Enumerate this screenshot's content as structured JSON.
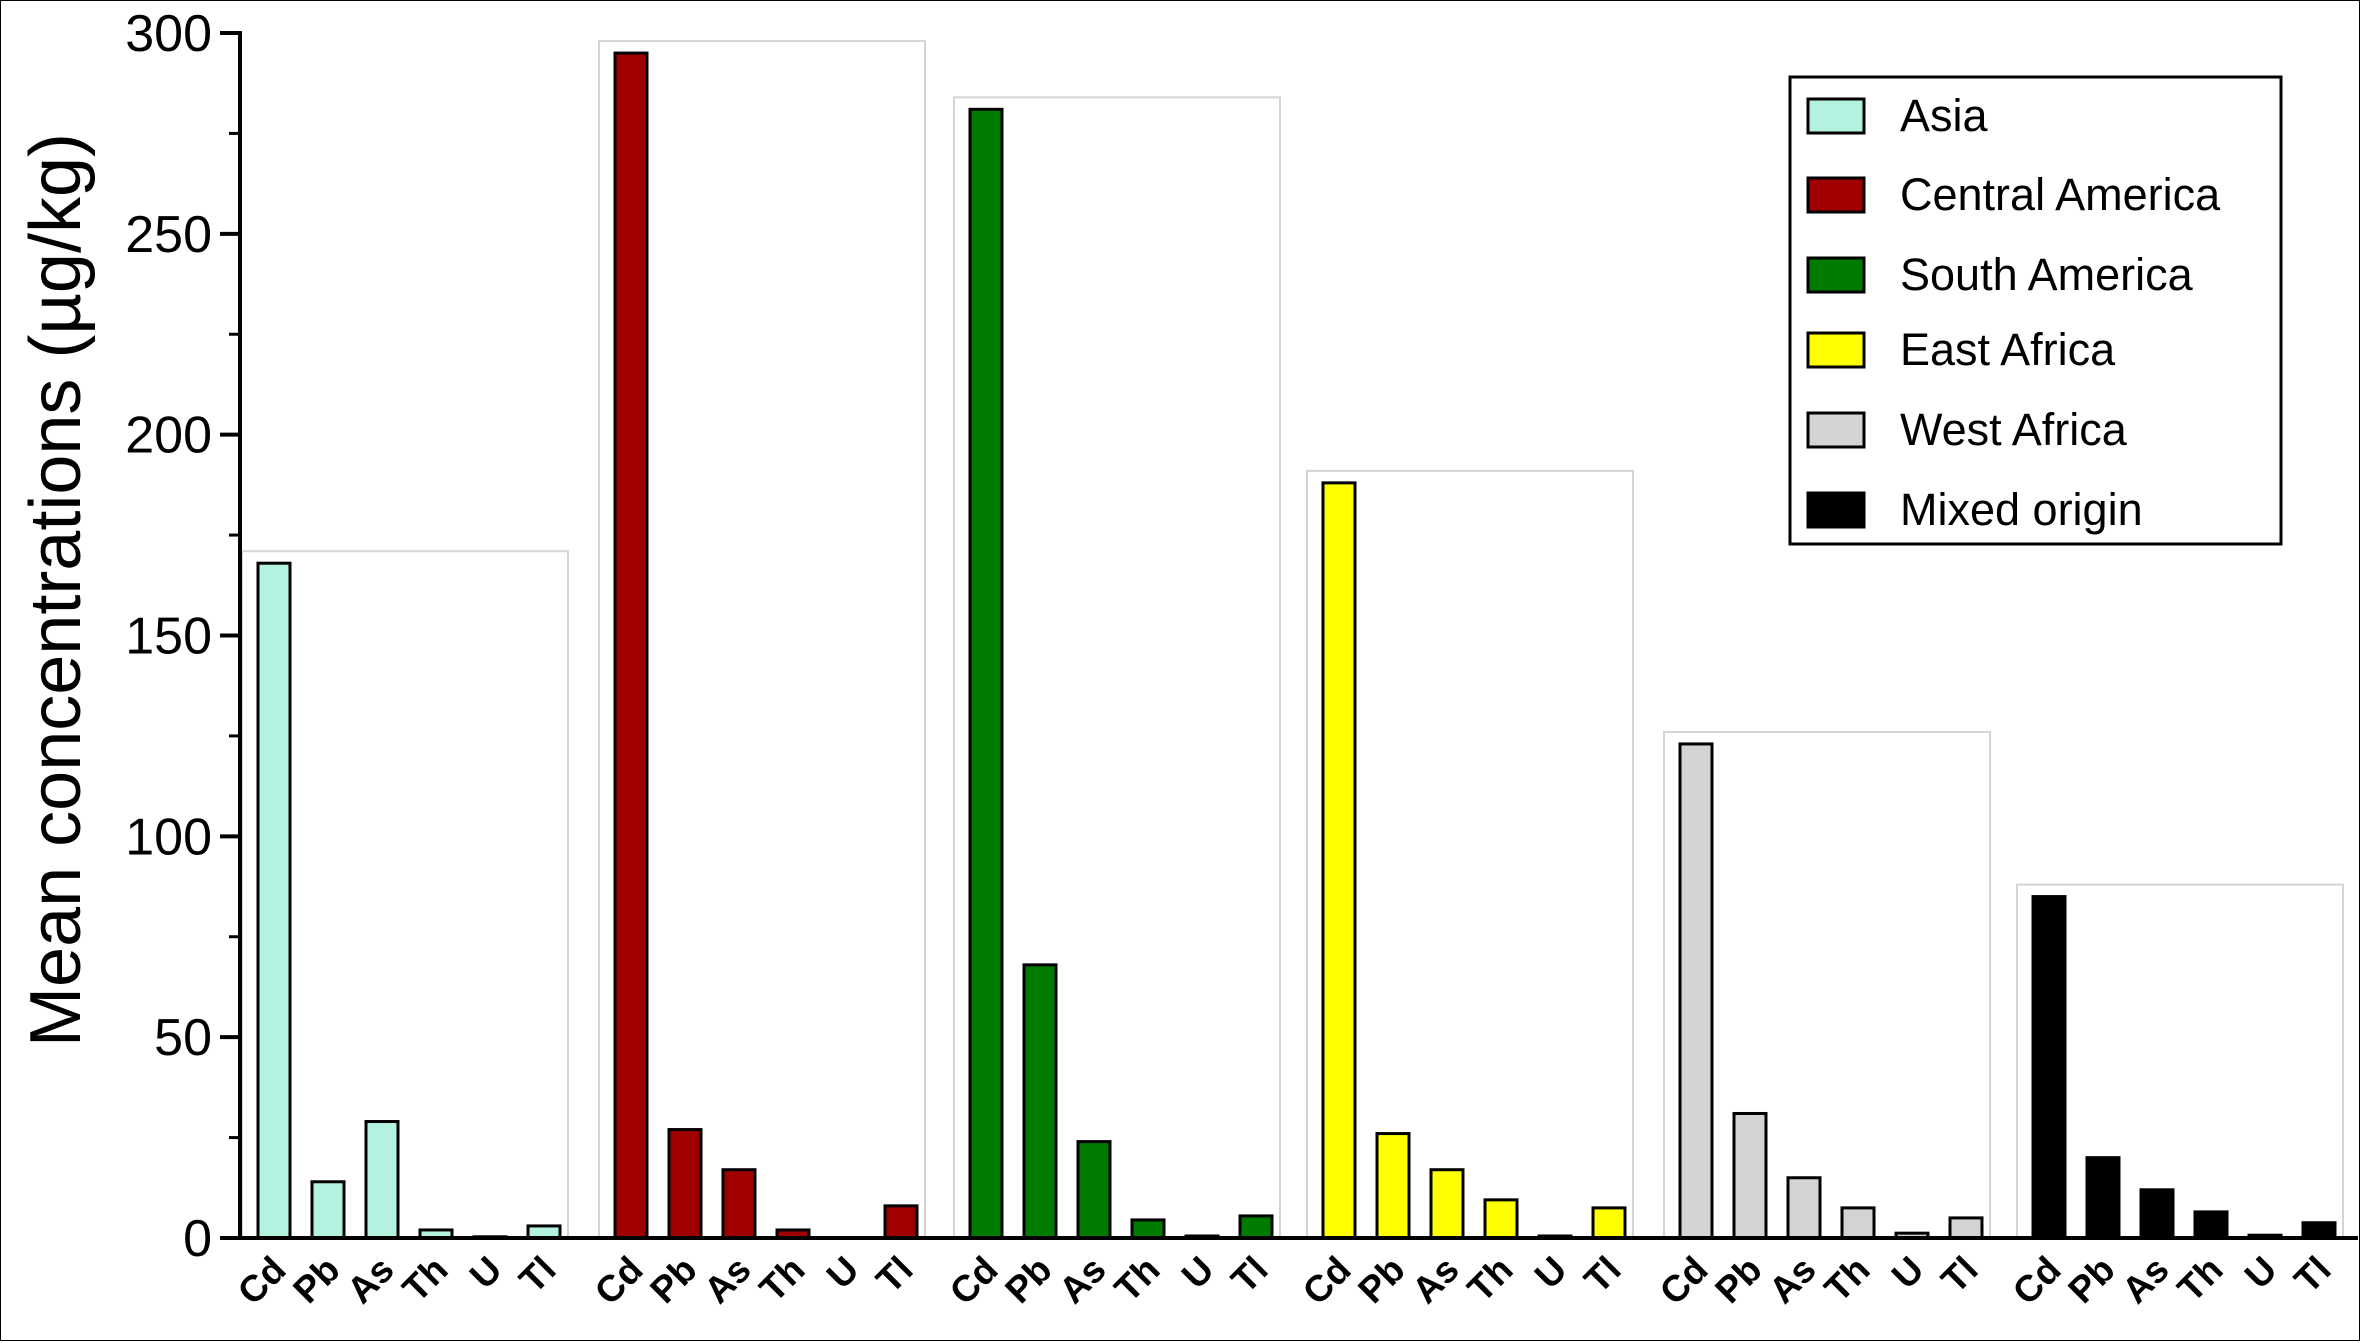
{
  "chart_data": {
    "type": "bar",
    "title": "",
    "ylabel": "Mean concentrations (µg/kg)",
    "xlabel": "",
    "ylim": [
      0,
      300
    ],
    "yticks": [
      "0",
      "50",
      "100",
      "150",
      "200",
      "250",
      "300"
    ],
    "categories": [
      "Cd",
      "Pb",
      "As",
      "Th",
      "U",
      "Tl"
    ],
    "legend_position": "top-right",
    "series": [
      {
        "name": "Asia",
        "color": "#b3f2e0",
        "values": [
          168,
          14,
          29,
          2,
          0.3,
          3
        ]
      },
      {
        "name": "Central America",
        "color": "#a00000",
        "values": [
          295,
          27,
          17,
          2,
          0,
          8
        ]
      },
      {
        "name": "South America",
        "color": "#007b00",
        "values": [
          281,
          68,
          24,
          4.5,
          0.5,
          5.5
        ]
      },
      {
        "name": "East Africa",
        "color": "#ffff00",
        "values": [
          188,
          26,
          17,
          9.5,
          0.5,
          7.5
        ]
      },
      {
        "name": "West Africa",
        "color": "#d3d3d3",
        "values": [
          123,
          31,
          15,
          7.5,
          1.2,
          5
        ]
      },
      {
        "name": "Mixed origin",
        "color": "#000000",
        "values": [
          85,
          20,
          12,
          6.5,
          0.7,
          3.8
        ]
      }
    ]
  }
}
